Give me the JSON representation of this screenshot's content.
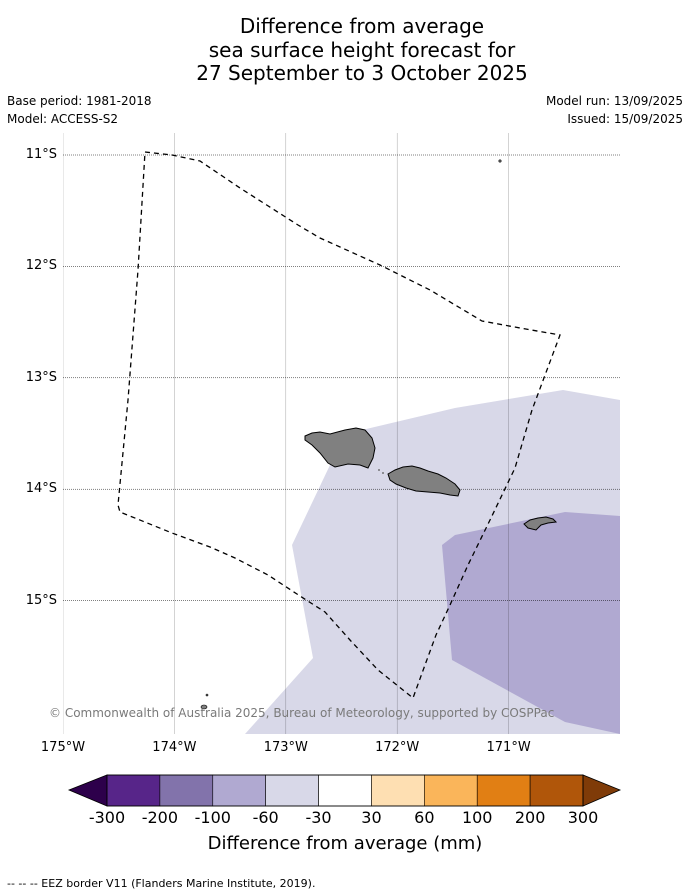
{
  "title": {
    "line1": "Difference from average",
    "line2": "sea surface height forecast for",
    "line3": "27 September to 3 October 2025"
  },
  "meta": {
    "base_period": "Base period: 1981-2018",
    "model": "Model: ACCESS-S2",
    "model_run": "Model run: 13/09/2025",
    "issued": "Issued: 15/09/2025"
  },
  "map": {
    "lat_labels": [
      "11°S",
      "12°S",
      "13°S",
      "14°S",
      "15°S"
    ],
    "lon_labels": [
      "175°W",
      "174°W",
      "173°W",
      "172°W",
      "171°W"
    ],
    "lat_values": [
      -11,
      -12,
      -13,
      -14,
      -15
    ],
    "lon_values": [
      -175,
      -174,
      -173,
      -172,
      -171
    ],
    "extent": {
      "lon_min": -175,
      "lon_max": -170,
      "lat_min": -16.2,
      "lat_max": -10.8
    },
    "land_color": "#808080",
    "ocean_color": "#ffffff",
    "copyright": "© Commonwealth of Australia 2025, Bureau of Meteorology, supported by COSPPac"
  },
  "colorbar": {
    "title": "Difference from average (mm)",
    "labels": [
      "-300",
      "-200",
      "-100",
      "-60",
      "-30",
      "30",
      "60",
      "100",
      "200",
      "300"
    ],
    "colors": [
      "#572589",
      "#8273ab",
      "#b0a9d1",
      "#d8d8e8",
      "#ffffff",
      "#fedfb2",
      "#fab55a",
      "#e17f14",
      "#b0560a"
    ],
    "under_color": "#2d004b",
    "over_color": "#7f3b08"
  },
  "footnote": "--  --  -- EEZ border V11 (Flanders Marine Institute, 2019)."
}
